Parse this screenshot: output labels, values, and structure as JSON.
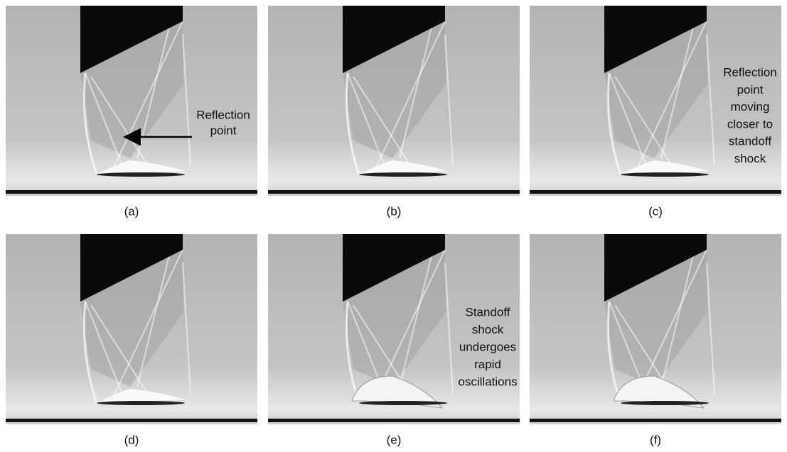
{
  "panels": [
    {
      "label": "(a)",
      "annotation": [
        "Reflection",
        "point"
      ]
    },
    {
      "label": "(b)",
      "annotation": []
    },
    {
      "label": "(c)",
      "annotation": [
        "Reflection",
        "point",
        "moving",
        "closer to",
        "standoff",
        "shock"
      ]
    },
    {
      "label": "(d)",
      "annotation": []
    },
    {
      "label": "(e)",
      "annotation": [
        "Standoff",
        "shock",
        "undergoes",
        "rapid",
        "oscillations"
      ]
    },
    {
      "label": "(f)",
      "annotation": []
    }
  ]
}
